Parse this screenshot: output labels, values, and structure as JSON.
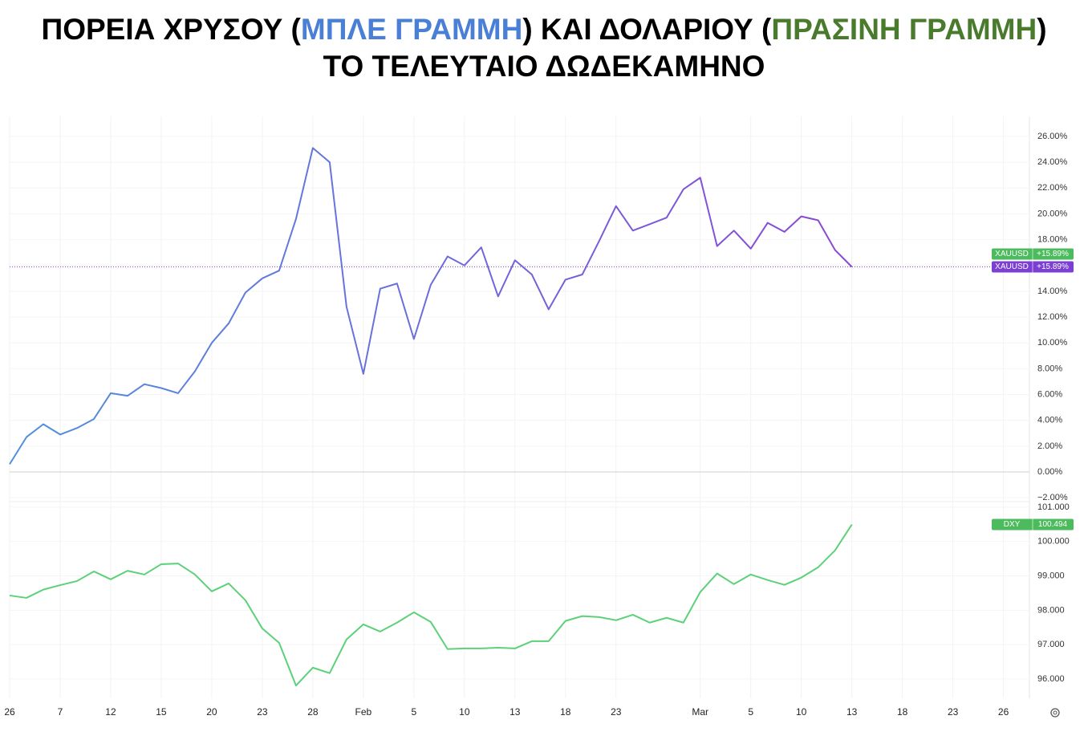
{
  "title": {
    "line1": [
      {
        "text": "ΠΟΡΕΙΑ ΧΡΥΣΟΥ (",
        "color": "#000000"
      },
      {
        "text": "ΜΠΛΕ ΓΡΑΜΜΗ",
        "color": "#4a7fd6"
      },
      {
        "text": ") ΚΑΙ ΔΟΛΑΡΙΟΥ (",
        "color": "#000000"
      },
      {
        "text": "ΠΡΑΣΙΝΗ ΓΡΑΜΜΗ",
        "color": "#4a7a2c"
      },
      {
        "text": ")",
        "color": "#000000"
      }
    ],
    "line2": "ΤΟ ΤΕΛΕΥΤΑΙΟ ΔΩΔΕΚΑΜΗΝΟ"
  },
  "chart_data": [
    {
      "type": "line",
      "series": [
        {
          "name": "XAUUSD",
          "color": "#8a46d8",
          "gradient": [
            "#4f91dd",
            "#8a46d8"
          ],
          "last_value_label": "+15.89%",
          "last_tag_colors": [
            "#4cbb5e",
            "#7b3fd4"
          ],
          "values": [
            0.6,
            2.7,
            3.7,
            2.9,
            3.4,
            4.1,
            6.1,
            5.9,
            6.8,
            6.5,
            6.1,
            7.8,
            10.0,
            11.5,
            13.9,
            15.0,
            15.6,
            19.6,
            25.1,
            24.0,
            12.8,
            7.6,
            14.2,
            14.6,
            10.3,
            14.5,
            16.7,
            16.0,
            17.4,
            13.6,
            16.4,
            15.3,
            12.6,
            14.9,
            15.3,
            17.9,
            20.6,
            18.7,
            19.2,
            19.7,
            21.9,
            22.8,
            17.5,
            18.7,
            17.3,
            19.3,
            18.6,
            19.8,
            19.5,
            17.2,
            15.89
          ]
        }
      ],
      "x": [
        0,
        1,
        2,
        3,
        4,
        5,
        6,
        7,
        8,
        9,
        10,
        11,
        12,
        13,
        14,
        15,
        16,
        17,
        18,
        19,
        20,
        21,
        22,
        23,
        24,
        25,
        26,
        27,
        28,
        29,
        30,
        31,
        32,
        33,
        34,
        35,
        36,
        37,
        38,
        39,
        40,
        41,
        42,
        43,
        44,
        45,
        46,
        47,
        48,
        49,
        50
      ],
      "xlim": [
        0,
        60.4
      ],
      "ylim": [
        -2.3,
        27.55
      ],
      "yticks": [
        {
          "value": -2,
          "label": "−2.00%"
        },
        {
          "value": 0,
          "label": "0.00%"
        },
        {
          "value": 2,
          "label": "2.00%"
        },
        {
          "value": 4,
          "label": "4.00%"
        },
        {
          "value": 6,
          "label": "6.00%"
        },
        {
          "value": 8,
          "label": "8.00%"
        },
        {
          "value": 10,
          "label": "10.00%"
        },
        {
          "value": 12,
          "label": "12.00%"
        },
        {
          "value": 14,
          "label": "14.00%"
        },
        {
          "value": 16,
          "label": "16.00%"
        },
        {
          "value": 18,
          "label": "18.00%"
        },
        {
          "value": 20,
          "label": "20.00%"
        },
        {
          "value": 22,
          "label": "22.00%"
        },
        {
          "value": 24,
          "label": "24.00%"
        },
        {
          "value": 26,
          "label": "26.00%"
        }
      ],
      "grid": true
    },
    {
      "type": "line",
      "series": [
        {
          "name": "DXY",
          "color": "#5cd17a",
          "last_value_label": "100.494",
          "last_tag_colors": [
            "#4cbb5e"
          ],
          "values": [
            98.43,
            98.36,
            98.6,
            98.73,
            98.85,
            99.13,
            98.9,
            99.15,
            99.04,
            99.34,
            99.36,
            99.04,
            98.55,
            98.78,
            98.29,
            97.47,
            97.05,
            95.81,
            96.33,
            96.17,
            97.15,
            97.59,
            97.38,
            97.64,
            97.94,
            97.66,
            96.87,
            96.89,
            96.89,
            96.91,
            96.89,
            97.1,
            97.1,
            97.69,
            97.83,
            97.8,
            97.71,
            97.87,
            97.64,
            97.78,
            97.64,
            98.53,
            99.07,
            98.76,
            99.04,
            98.88,
            98.74,
            98.95,
            99.25,
            99.74,
            100.494
          ]
        }
      ],
      "x": [
        0,
        1,
        2,
        3,
        4,
        5,
        6,
        7,
        8,
        9,
        10,
        11,
        12,
        13,
        14,
        15,
        16,
        17,
        18,
        19,
        20,
        21,
        22,
        23,
        24,
        25,
        26,
        27,
        28,
        29,
        30,
        31,
        32,
        33,
        34,
        35,
        36,
        37,
        38,
        39,
        40,
        41,
        42,
        43,
        44,
        45,
        46,
        47,
        48,
        49,
        50
      ],
      "xlim": [
        0,
        60.4
      ],
      "xticks": [
        {
          "value": 0,
          "label": "26"
        },
        {
          "value": 3,
          "label": "7"
        },
        {
          "value": 6,
          "label": "12"
        },
        {
          "value": 9,
          "label": "15"
        },
        {
          "value": 12,
          "label": "20"
        },
        {
          "value": 15,
          "label": "23"
        },
        {
          "value": 18,
          "label": "28"
        },
        {
          "value": 21,
          "label": "Feb"
        },
        {
          "value": 24,
          "label": "5"
        },
        {
          "value": 27,
          "label": "10"
        },
        {
          "value": 30,
          "label": "13"
        },
        {
          "value": 33,
          "label": "18"
        },
        {
          "value": 36,
          "label": "23"
        },
        {
          "value": 41,
          "label": "Mar"
        },
        {
          "value": 44,
          "label": "5"
        },
        {
          "value": 47,
          "label": "10"
        },
        {
          "value": 50,
          "label": "13"
        },
        {
          "value": 53,
          "label": "18"
        },
        {
          "value": 56,
          "label": "23"
        },
        {
          "value": 59,
          "label": "26"
        }
      ],
      "ylim": [
        95.44,
        101.16
      ],
      "yticks": [
        {
          "value": 96,
          "label": "96.000"
        },
        {
          "value": 97,
          "label": "97.000"
        },
        {
          "value": 98,
          "label": "98.000"
        },
        {
          "value": 99,
          "label": "99.000"
        },
        {
          "value": 100,
          "label": "100.000"
        },
        {
          "value": 101,
          "label": "101.000"
        }
      ],
      "grid": true
    }
  ]
}
